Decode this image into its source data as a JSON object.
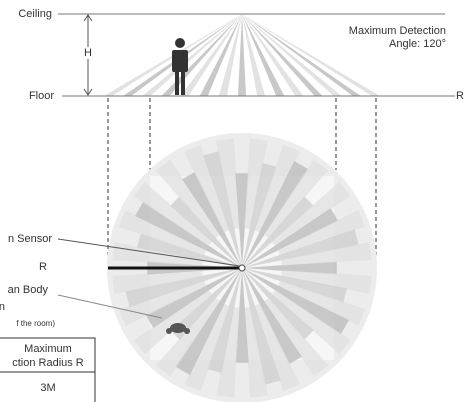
{
  "side_view": {
    "ceiling": "Ceiling",
    "floor": "Floor",
    "height": "H",
    "right_end": "R",
    "angle_note": [
      "Maximum Detection",
      "Angle: 120°"
    ]
  },
  "top_view": {
    "sensor_label": "n Sensor",
    "radius_label": "R",
    "body_label": [
      "an Body",
      "n",
      "f the room)"
    ]
  },
  "table": {
    "header": [
      "Maximum",
      "ction Radius R"
    ],
    "rows": [
      [
        "3M"
      ]
    ]
  }
}
